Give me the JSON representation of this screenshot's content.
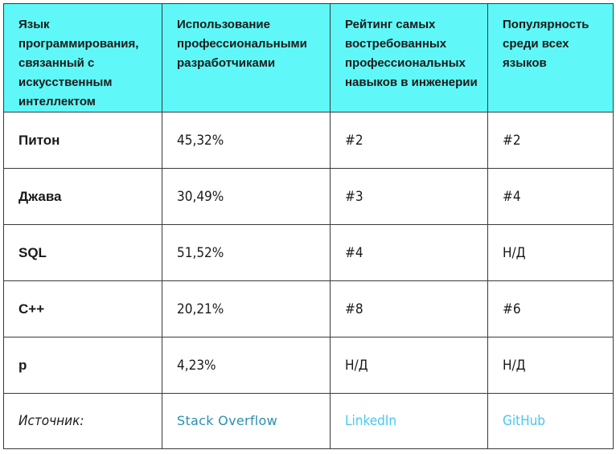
{
  "headers": [
    "Язык программирования, связанный с искусственным интеллектом",
    "Использование профессиональными разработчиками",
    "Рейтинг самых востребованных профессиональных навыков в инженерии",
    "Популярность среди всех языков"
  ],
  "rows": [
    {
      "language": "Питон",
      "usage": "45,32%",
      "rank": "#2",
      "popularity": "#2"
    },
    {
      "language": "Джава",
      "usage": "30,49%",
      "rank": "#3",
      "popularity": "#4"
    },
    {
      "language": "SQL",
      "usage": "51,52%",
      "rank": "#4",
      "popularity": "Н/Д"
    },
    {
      "language": "С++",
      "usage": "20,21%",
      "rank": "#8",
      "popularity": "#6"
    },
    {
      "language": "р",
      "usage": "4,23%",
      "rank": "Н/Д",
      "popularity": "Н/Д"
    }
  ],
  "source": {
    "label": "Источник:",
    "usage": "Stack Overflow",
    "rank": "LinkedIn",
    "popularity": "GitHub"
  },
  "colors": {
    "header_bg": "#5ff7f7",
    "link_stackoverflow": "#2b8fb0",
    "link_other": "#48c8f0"
  }
}
